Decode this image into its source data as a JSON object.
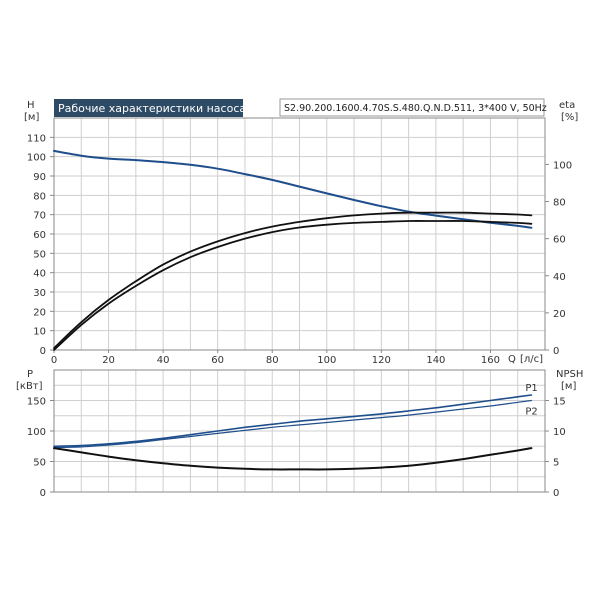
{
  "chart_data": [
    {
      "id": "top",
      "type": "line",
      "title": "Рабочие характеристики насоса",
      "model": "S2.90.200.1600.4.70S.S.480.Q.N.D.511, 3*400 V, 50Hz",
      "x": {
        "label_name": "Q",
        "label_unit": "[л/с]",
        "range": [
          0,
          180
        ],
        "ticks": [
          0,
          20,
          40,
          60,
          80,
          100,
          120,
          140,
          160
        ]
      },
      "y_left": {
        "label_name": "H",
        "label_unit": "[м]",
        "range": [
          0,
          120
        ],
        "ticks": [
          0,
          10,
          20,
          30,
          40,
          50,
          60,
          70,
          80,
          90,
          100,
          110
        ]
      },
      "y_right": {
        "label_name": "eta",
        "label_unit": "[%]",
        "range": [
          0,
          125
        ],
        "ticks": [
          0,
          20,
          40,
          60,
          80,
          100
        ]
      },
      "series": [
        {
          "key": "H",
          "axis": "left",
          "color": "#1f4e8c",
          "x": [
            0,
            10,
            20,
            30,
            40,
            50,
            60,
            70,
            80,
            90,
            100,
            110,
            120,
            130,
            140,
            150,
            160,
            170,
            175
          ],
          "y": [
            103,
            100.5,
            99,
            98.2,
            97.2,
            95.8,
            93.8,
            91,
            88,
            84.5,
            81,
            77.6,
            74.4,
            71.6,
            69.5,
            67.6,
            65.8,
            64.2,
            63.2
          ]
        },
        {
          "key": "eta1",
          "axis": "right",
          "color": "#111111",
          "x": [
            0,
            10,
            20,
            30,
            40,
            50,
            60,
            70,
            80,
            90,
            100,
            110,
            120,
            130,
            140,
            150,
            160,
            170,
            175
          ],
          "y": [
            1,
            15,
            27,
            37,
            46,
            53,
            58.5,
            63,
            66.5,
            69,
            71,
            72.5,
            73.5,
            74,
            74,
            74,
            73.5,
            73,
            72.5
          ]
        },
        {
          "key": "eta2",
          "axis": "right",
          "color": "#111111",
          "x": [
            0,
            10,
            20,
            30,
            40,
            50,
            60,
            70,
            80,
            90,
            100,
            110,
            120,
            130,
            140,
            150,
            160,
            170,
            175
          ],
          "y": [
            0,
            13.5,
            25,
            34.5,
            43,
            50,
            55.5,
            60,
            63.5,
            66,
            67.5,
            68.5,
            69,
            69.5,
            69.5,
            69.5,
            69,
            68.5,
            68
          ]
        }
      ]
    },
    {
      "id": "bottom",
      "type": "line",
      "x": {
        "range": [
          0,
          180
        ]
      },
      "y_left": {
        "label_name": "P",
        "label_unit": "[кВт]",
        "range": [
          0,
          200
        ],
        "ticks": [
          0,
          50,
          100,
          150
        ]
      },
      "y_right": {
        "label_name": "NPSH",
        "label_unit": "[м]",
        "range": [
          0,
          20
        ],
        "ticks": [
          0,
          5,
          10,
          15
        ]
      },
      "series": [
        {
          "key": "P1",
          "name": "P1",
          "axis": "left",
          "color": "#1f4e8c",
          "x": [
            0,
            10,
            20,
            30,
            40,
            50,
            60,
            70,
            80,
            90,
            100,
            110,
            120,
            130,
            140,
            150,
            160,
            170,
            175
          ],
          "y": [
            75,
            76,
            79,
            83,
            88,
            94,
            100,
            106,
            111,
            116,
            120,
            124,
            128,
            133,
            138,
            144,
            150,
            156,
            159
          ]
        },
        {
          "key": "P2",
          "name": "P2",
          "axis": "left",
          "color": "#1f4e8c",
          "x": [
            0,
            10,
            20,
            30,
            40,
            50,
            60,
            70,
            80,
            90,
            100,
            110,
            120,
            130,
            140,
            150,
            160,
            170,
            175
          ],
          "y": [
            73,
            74,
            77,
            81,
            86,
            91,
            96,
            101,
            106,
            110,
            114,
            118,
            122,
            126,
            131,
            136,
            141,
            147,
            150
          ]
        },
        {
          "key": "NPSH",
          "axis": "right",
          "color": "#111111",
          "x": [
            0,
            10,
            20,
            30,
            40,
            50,
            60,
            70,
            80,
            90,
            100,
            110,
            120,
            130,
            140,
            150,
            160,
            170,
            175
          ],
          "y": [
            7.2,
            6.5,
            5.8,
            5.2,
            4.7,
            4.3,
            4.0,
            3.8,
            3.7,
            3.7,
            3.7,
            3.8,
            4.0,
            4.3,
            4.8,
            5.4,
            6.1,
            6.8,
            7.2
          ]
        }
      ]
    }
  ]
}
